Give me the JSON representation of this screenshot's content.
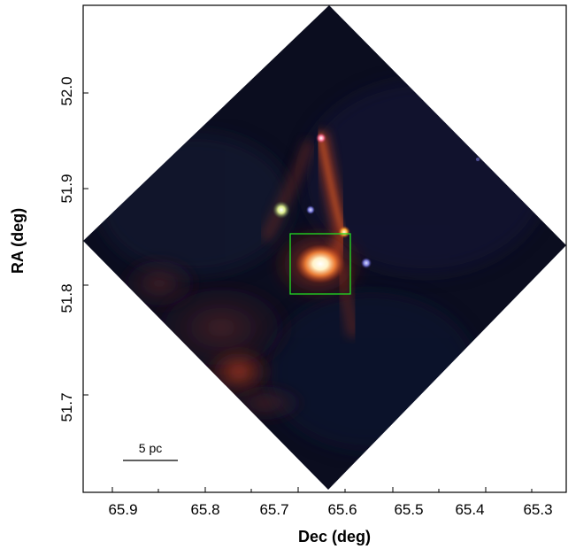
{
  "plot": {
    "xlabel": "Dec (deg)",
    "ylabel": "RA (deg)",
    "x_ticks": [
      "65.9",
      "65.8",
      "65.7",
      "65.6",
      "65.5",
      "65.4",
      "65.3"
    ],
    "y_ticks": [
      "52.0",
      "51.9",
      "51.8",
      "51.7"
    ],
    "scale_bar_label": "5 pc"
  },
  "image": {
    "description_colors": {
      "background": "#0a0c1c",
      "emission": "#b8431f",
      "highlight": "#ffffff",
      "box": "#22dd22"
    }
  }
}
